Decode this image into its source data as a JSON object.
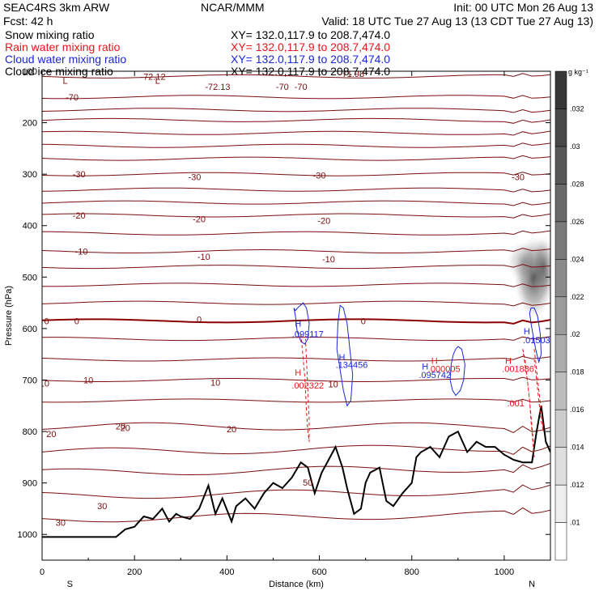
{
  "header": {
    "left1": "SEAC4RS  3km ARW",
    "center1": "NCAR/MMM",
    "right1": "Init: 00 UTC Mon 26 Aug 13",
    "left2": "Fcst:    42 h",
    "right2": "Valid: 18 UTC Tue 27 Aug 13 (13 CDT Tue 27 Aug 13)",
    "fields": [
      {
        "name": "Snow mixing ratio",
        "xy": "XY=  132.0,117.9 to 208.7,474.0",
        "color": "#000000"
      },
      {
        "name": "Rain water mixing ratio",
        "xy": "XY=  132.0,117.9 to 208.7,474.0",
        "color": "#e8161b"
      },
      {
        "name": "Cloud water mixing ratio",
        "xy": "XY=  132.0,117.9 to 208.7,474.0",
        "color": "#1a26d9"
      },
      {
        "name": "Cloud ice mixing ratio",
        "xy": "XY=  132.0,117.9 to 208.7,474.0",
        "color": "#000000"
      }
    ]
  },
  "chart_data": {
    "type": "contour",
    "xlabel": "Distance (km)",
    "ylabel": "Pressure (hPa)",
    "xlim": [
      0,
      1100
    ],
    "ylim": [
      1050,
      100
    ],
    "xticks": [
      0,
      200,
      400,
      600,
      800,
      1000
    ],
    "yticks": [
      100,
      200,
      300,
      400,
      500,
      600,
      700,
      800,
      900,
      1000
    ],
    "x_end_labels": {
      "left": "S",
      "right": "N"
    },
    "temperature_isotherms": {
      "color": "#7a0d0d",
      "zero_color": "#8b0000",
      "levels": [
        {
          "p": 110,
          "label": "-72.12",
          "lx": 240
        },
        {
          "p": 150,
          "label": "-70",
          "lx": 65
        },
        {
          "p": 175
        },
        {
          "p": 195
        },
        {
          "p": 220
        },
        {
          "p": 245
        },
        {
          "p": 270
        },
        {
          "p": 300,
          "label": "-30",
          "lx": 80
        },
        {
          "p": 330
        },
        {
          "p": 355
        },
        {
          "p": 380,
          "label": "-20",
          "lx": 80
        },
        {
          "p": 415
        },
        {
          "p": 450,
          "label": "-10",
          "lx": 85
        },
        {
          "p": 480
        },
        {
          "p": 515
        },
        {
          "p": 550
        },
        {
          "p": 585,
          "label": "0",
          "lx": 75,
          "zero": true
        },
        {
          "p": 620
        },
        {
          "p": 660
        },
        {
          "p": 700,
          "label": "10",
          "lx": 100
        },
        {
          "p": 740
        },
        {
          "p": 790,
          "label": "20",
          "lx": 170
        },
        {
          "p": 840
        },
        {
          "p": 880
        },
        {
          "p": 925
        },
        {
          "p": 970
        }
      ],
      "inline_labels": [
        {
          "x": 50,
          "p": 118,
          "text": "L"
        },
        {
          "x": 250,
          "p": 118,
          "text": "L"
        },
        {
          "x": 380,
          "p": 130,
          "text": "-72.13"
        },
        {
          "x": 520,
          "p": 130,
          "text": "-70"
        },
        {
          "x": 560,
          "p": 130,
          "text": "-70"
        },
        {
          "x": 670,
          "p": 105,
          "text": "-71.98"
        },
        {
          "x": 330,
          "p": 305,
          "text": "-30"
        },
        {
          "x": 600,
          "p": 302,
          "text": "-30"
        },
        {
          "x": 1030,
          "p": 305,
          "text": "-30"
        },
        {
          "x": 340,
          "p": 387,
          "text": "-20"
        },
        {
          "x": 610,
          "p": 390,
          "text": "-20"
        },
        {
          "x": 350,
          "p": 460,
          "text": "-10"
        },
        {
          "x": 620,
          "p": 465,
          "text": "-10"
        },
        {
          "x": 340,
          "p": 582,
          "text": "0"
        },
        {
          "x": 695,
          "p": 585,
          "text": "0"
        },
        {
          "x": 375,
          "p": 705,
          "text": "10"
        },
        {
          "x": 630,
          "p": 708,
          "text": "10"
        },
        {
          "x": 180,
          "p": 793,
          "text": "20"
        },
        {
          "x": 410,
          "p": 795,
          "text": "20"
        },
        {
          "x": 20,
          "p": 805,
          "text": "20"
        },
        {
          "x": 40,
          "p": 977,
          "text": "30"
        },
        {
          "x": 130,
          "p": 945,
          "text": "30"
        },
        {
          "x": 575,
          "p": 899,
          "text": "50"
        },
        {
          "x": 5,
          "p": 706,
          "text": "10"
        },
        {
          "x": 10,
          "p": 585,
          "text": "0"
        }
      ]
    },
    "terrain": {
      "color": "#000000",
      "x": [
        0,
        160,
        180,
        200,
        220,
        240,
        260,
        275,
        290,
        300,
        320,
        340,
        360,
        375,
        390,
        410,
        420,
        440,
        460,
        480,
        500,
        520,
        540,
        560,
        575,
        590,
        605,
        620,
        635,
        650,
        660,
        675,
        690,
        700,
        710,
        720,
        730,
        745,
        760,
        780,
        800,
        810,
        820,
        840,
        860,
        880,
        900,
        920,
        940,
        960,
        980,
        1000,
        1010,
        1020,
        1040,
        1060,
        1070,
        1080,
        1090,
        1100
      ],
      "p": [
        1005,
        1005,
        990,
        985,
        965,
        970,
        950,
        975,
        960,
        965,
        970,
        950,
        905,
        960,
        930,
        975,
        945,
        930,
        950,
        920,
        900,
        910,
        890,
        860,
        870,
        920,
        880,
        855,
        830,
        870,
        910,
        960,
        950,
        900,
        880,
        875,
        870,
        935,
        945,
        920,
        900,
        850,
        840,
        830,
        850,
        810,
        800,
        840,
        820,
        830,
        830,
        845,
        850,
        855,
        860,
        860,
        800,
        750,
        820,
        840
      ]
    },
    "rain_water": {
      "color": "#e8161b",
      "labels": [
        {
          "x": 575,
          "p": 710,
          "text": ".002322",
          "h": "H",
          "hp": 685
        },
        {
          "x": 870,
          "p": 678,
          "text": ".000005",
          "h": "H",
          "hp": 662
        },
        {
          "x": 1030,
          "p": 678,
          "text": ".001886",
          "h": "H",
          "hp": 662
        },
        {
          "x": 1025,
          "p": 745,
          "text": ".001"
        }
      ],
      "contours": [
        {
          "x": [
            560,
            562,
            565,
            568,
            570,
            572,
            575,
            578,
            578,
            575,
            572,
            570
          ],
          "p": [
            610,
            630,
            660,
            690,
            720,
            760,
            800,
            820,
            780,
            720,
            660,
            620
          ]
        },
        {
          "x": [
            1040,
            1045,
            1050,
            1055,
            1060,
            1063,
            1065,
            1062,
            1058,
            1055,
            1050,
            1045,
            1040
          ],
          "p": [
            640,
            660,
            700,
            740,
            790,
            820,
            850,
            820,
            780,
            740,
            700,
            670,
            640
          ]
        },
        {
          "x": [
            1065,
            1070,
            1075,
            1080,
            1085,
            1080,
            1075,
            1070,
            1065
          ],
          "p": [
            640,
            680,
            720,
            760,
            800,
            780,
            740,
            700,
            660
          ]
        }
      ]
    },
    "cloud_water": {
      "color": "#1a26d9",
      "labels": [
        {
          "x": 575,
          "p": 610,
          "text": ".099117",
          "h": "H",
          "hp": 590
        },
        {
          "x": 670,
          "p": 670,
          "text": ".134456",
          "h": "H",
          "hp": 655
        },
        {
          "x": 850,
          "p": 690,
          "text": ".095742",
          "h": "H",
          "hp": 673
        },
        {
          "x": 1070,
          "p": 622,
          "text": ".01503",
          "h": "H",
          "hp": 605
        }
      ],
      "contours": [
        {
          "x": [
            545,
            548,
            552,
            560,
            568,
            575,
            578,
            572,
            565,
            555,
            548,
            545
          ],
          "p": [
            560,
            575,
            605,
            625,
            630,
            620,
            590,
            560,
            550,
            558,
            565,
            560
          ]
        },
        {
          "x": [
            645,
            640,
            638,
            645,
            652,
            660,
            668,
            672,
            666,
            660,
            652,
            645
          ],
          "p": [
            555,
            590,
            640,
            680,
            720,
            750,
            740,
            690,
            640,
            590,
            560,
            555
          ]
        },
        {
          "x": [
            890,
            885,
            883,
            888,
            895,
            905,
            912,
            915,
            908,
            900,
            895,
            890
          ],
          "p": [
            650,
            670,
            700,
            720,
            730,
            720,
            700,
            670,
            640,
            635,
            640,
            650
          ]
        },
        {
          "x": [
            1055,
            1058,
            1062,
            1068,
            1075,
            1080,
            1078,
            1072,
            1065,
            1058,
            1055
          ],
          "p": [
            570,
            590,
            610,
            640,
            665,
            650,
            610,
            575,
            560,
            560,
            570
          ]
        }
      ]
    },
    "snow_shading": {
      "colorbar_title": "g kg⁻¹",
      "colorbar_ticks": [
        ".01",
        ".012",
        ".014",
        ".016",
        ".018",
        ".02",
        ".022",
        ".024",
        ".026",
        ".028",
        ".03",
        ".032"
      ],
      "blobs": [
        {
          "x": 1065,
          "p": 500,
          "rx": 25,
          "rp": 80,
          "intensity": 0.9
        },
        {
          "x": 1040,
          "p": 470,
          "rx": 20,
          "rp": 40,
          "intensity": 0.35
        },
        {
          "x": 1085,
          "p": 480,
          "rx": 15,
          "rp": 60,
          "intensity": 0.6
        }
      ]
    }
  }
}
